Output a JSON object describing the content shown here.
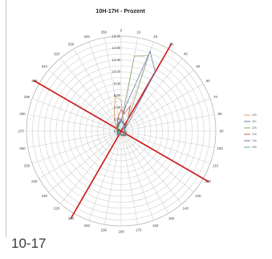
{
  "caption": "10-17",
  "chart_data": {
    "type": "radar",
    "title": "10H-17H - Prozent",
    "angles": [
      0,
      10,
      20,
      30,
      40,
      50,
      60,
      70,
      80,
      90,
      100,
      110,
      120,
      130,
      140,
      150,
      160,
      170,
      180,
      190,
      200,
      210,
      220,
      230,
      240,
      250,
      260,
      270,
      280,
      290,
      300,
      310,
      320,
      330,
      340,
      350
    ],
    "r_ticks": [
      "0.00",
      "2.00",
      "4.00",
      "6.00",
      "8.00",
      "10.00",
      "12.00",
      "14.00",
      "16.00"
    ],
    "rlim": [
      0,
      16
    ],
    "grid": true,
    "legend_position": "right",
    "legend": [
      "10h",
      "11h",
      "12h",
      "13h",
      "14h",
      "15h"
    ],
    "series": [
      {
        "name": "10h",
        "color": "#d99b58",
        "values": [
          5.2,
          2.0,
          1.4,
          0.8,
          0.7,
          0.6,
          0.6,
          0.5,
          0.5,
          0.6,
          0.6,
          0.7,
          0.8,
          0.8,
          0.9,
          0.8,
          0.7,
          0.6,
          0.6,
          0.5,
          0.5,
          0.6,
          0.7,
          0.7,
          0.6,
          0.5,
          0.5,
          0.5,
          0.6,
          0.7,
          0.8,
          1.0,
          1.4,
          2.2,
          3.4,
          6.0
        ]
      },
      {
        "name": "11h",
        "color": "#4f6fa6",
        "values": [
          1.8,
          4.2,
          14.3,
          11.5,
          2.1,
          1.0,
          0.7,
          0.6,
          0.6,
          0.6,
          0.7,
          0.8,
          0.9,
          1.0,
          0.9,
          0.8,
          0.7,
          0.6,
          0.6,
          0.5,
          0.5,
          0.6,
          0.7,
          0.8,
          0.7,
          0.6,
          0.5,
          0.5,
          0.6,
          0.6,
          0.7,
          0.8,
          1.0,
          1.2,
          1.4,
          1.6
        ]
      },
      {
        "name": "12h",
        "color": "#8a9a5b",
        "values": [
          1.5,
          12.8,
          13.6,
          2.4,
          1.2,
          0.8,
          0.7,
          0.6,
          0.6,
          0.7,
          0.8,
          0.9,
          1.0,
          1.1,
          1.0,
          0.9,
          0.8,
          0.7,
          0.7,
          0.6,
          0.6,
          0.7,
          0.8,
          0.8,
          0.7,
          0.6,
          0.6,
          0.6,
          0.7,
          0.7,
          0.8,
          0.9,
          1.1,
          1.3,
          1.5,
          1.6
        ]
      },
      {
        "name": "13h",
        "color": "#c44f4f",
        "values": [
          3.6,
          3.0,
          4.5,
          2.2,
          1.3,
          0.8,
          0.7,
          0.6,
          0.6,
          0.7,
          0.8,
          0.9,
          1.0,
          1.0,
          0.9,
          0.8,
          0.7,
          0.7,
          0.6,
          0.6,
          0.6,
          0.7,
          0.8,
          0.8,
          0.7,
          0.6,
          0.6,
          0.6,
          0.6,
          0.7,
          0.7,
          0.8,
          1.0,
          1.2,
          1.8,
          2.6
        ]
      },
      {
        "name": "14h",
        "color": "#7b5aa0",
        "values": [
          2.0,
          1.6,
          1.4,
          1.1,
          0.9,
          0.8,
          0.7,
          0.6,
          0.6,
          0.6,
          0.7,
          0.8,
          0.9,
          0.9,
          0.8,
          0.8,
          0.7,
          0.6,
          0.6,
          0.5,
          0.5,
          0.6,
          0.7,
          0.7,
          0.6,
          0.5,
          0.5,
          0.5,
          0.6,
          0.6,
          0.7,
          0.8,
          0.9,
          1.0,
          1.2,
          1.5
        ]
      },
      {
        "name": "15h",
        "color": "#4aa7a1",
        "values": [
          1.6,
          1.4,
          1.2,
          1.0,
          0.8,
          0.7,
          0.6,
          0.6,
          0.6,
          0.6,
          0.7,
          0.7,
          0.8,
          0.8,
          0.7,
          0.7,
          0.6,
          0.6,
          0.5,
          0.5,
          0.5,
          0.6,
          0.6,
          0.6,
          0.6,
          0.5,
          0.5,
          0.5,
          0.5,
          0.6,
          0.6,
          0.7,
          0.8,
          0.9,
          1.1,
          1.3
        ]
      }
    ],
    "reference_lines": {
      "color": "#cc1f1f",
      "angles": [
        30,
        120,
        210,
        300
      ]
    }
  }
}
